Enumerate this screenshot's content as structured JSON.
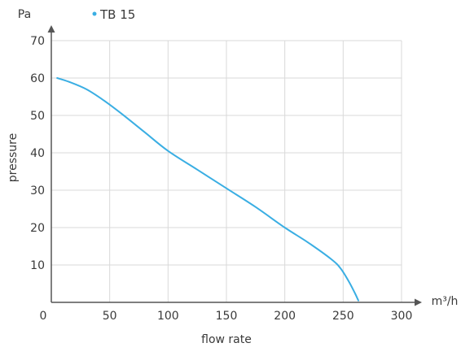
{
  "chart_data": {
    "type": "line",
    "title": "",
    "xlabel": "flow rate",
    "ylabel": "pressure",
    "x_unit": "m³/h",
    "y_unit": "Pa",
    "xlim": [
      0,
      300
    ],
    "ylim": [
      0,
      70
    ],
    "x_ticks": [
      "0",
      "50",
      "100",
      "150",
      "200",
      "250",
      "300"
    ],
    "y_ticks": [
      "10",
      "20",
      "30",
      "40",
      "50",
      "60",
      "70"
    ],
    "grid": true,
    "legend_position": "top-left",
    "series": [
      {
        "name": "TB 15",
        "color": "#3aaee3",
        "points": [
          [
            5,
            60
          ],
          [
            15,
            59
          ],
          [
            30,
            57
          ],
          [
            45,
            54
          ],
          [
            60,
            50.5
          ],
          [
            80,
            45.5
          ],
          [
            100,
            40.5
          ],
          [
            125,
            35.5
          ],
          [
            150,
            30.5
          ],
          [
            175,
            25.5
          ],
          [
            200,
            20
          ],
          [
            220,
            16
          ],
          [
            240,
            11.5
          ],
          [
            248,
            9
          ],
          [
            255,
            5.5
          ],
          [
            260,
            2.5
          ],
          [
            263,
            0.5
          ]
        ]
      }
    ]
  }
}
